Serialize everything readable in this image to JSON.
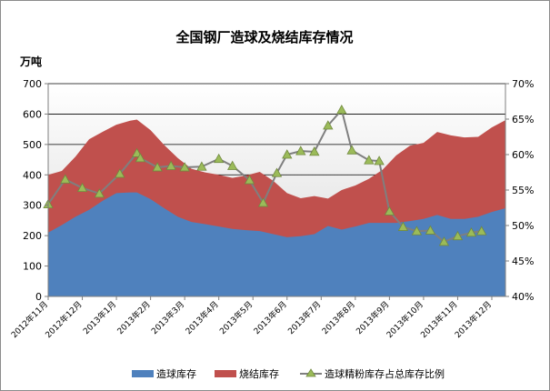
{
  "chart_data": {
    "type": "area",
    "title": "全国钢厂造球及烧结库存情况",
    "y_unit_label": "万吨",
    "ylim": [
      0,
      700
    ],
    "yticks": [
      "0",
      "100",
      "200",
      "300",
      "400",
      "500",
      "600",
      "700"
    ],
    "y2lim": [
      40,
      70
    ],
    "y2ticks": [
      "40%",
      "45%",
      "50%",
      "55%",
      "60%",
      "65%",
      "70%"
    ],
    "xticks": [
      "2012年11月",
      "2012年12月",
      "2013年1月",
      "2013年2月",
      "2013年3月",
      "2013年4月",
      "2013年5月",
      "2013年6月",
      "2013年7月",
      "2013年8月",
      "2013年9月",
      "2013年10月",
      "2013年11月",
      "2013年12月"
    ],
    "x_months": [
      0,
      0.4,
      0.8,
      1.2,
      1.6,
      2.0,
      2.4,
      2.6,
      3.0,
      3.4,
      3.8,
      4.2,
      4.6,
      5.0,
      5.4,
      5.8,
      6.2,
      6.6,
      7.0,
      7.4,
      7.8,
      8.2,
      8.6,
      9.0,
      9.4,
      9.8,
      10.2,
      10.6,
      11.0,
      11.4,
      11.8,
      12.2,
      12.6,
      13.0,
      13.4
    ],
    "series": [
      {
        "name": "造球库存",
        "role": "stacked-area",
        "color": "#4f81bd",
        "values": [
          210,
          235,
          262,
          285,
          315,
          340,
          342,
          342,
          320,
          290,
          262,
          245,
          238,
          230,
          222,
          218,
          215,
          205,
          195,
          198,
          205,
          232,
          220,
          230,
          242,
          242,
          242,
          248,
          255,
          268,
          255,
          255,
          262,
          278,
          290
        ]
      },
      {
        "name": "烧结库存",
        "role": "stacked-area",
        "color": "#c0504d",
        "values": [
          190,
          178,
          198,
          232,
          227,
          225,
          236,
          240,
          227,
          208,
          193,
          175,
          170,
          170,
          168,
          180,
          195,
          175,
          145,
          125,
          125,
          90,
          130,
          135,
          145,
          175,
          222,
          248,
          250,
          273,
          275,
          268,
          263,
          278,
          290
        ]
      },
      {
        "name": "造球精粉库存占总库存比例",
        "role": "line",
        "axis": "right",
        "color": "#7f7f7f",
        "marker_color": "#9bbb59",
        "x": [
          0,
          0.5,
          1.0,
          1.5,
          2.1,
          2.6,
          2.7,
          3.2,
          3.6,
          4.0,
          4.5,
          5.0,
          5.4,
          5.9,
          6.3,
          6.7,
          7.0,
          7.4,
          7.8,
          8.2,
          8.6,
          8.9,
          9.4,
          9.7,
          10.0,
          10.4,
          10.8,
          11.2,
          11.6,
          12.0,
          12.4,
          12.7
        ],
        "values": [
          53,
          56.5,
          55.3,
          54.5,
          57.3,
          60.2,
          59.5,
          58.2,
          58.4,
          58.2,
          58.3,
          59.4,
          58.4,
          56.4,
          53.2,
          57.4,
          60.0,
          60.5,
          60.4,
          64.1,
          66.3,
          60.6,
          59.2,
          59.1,
          52.0,
          49.8,
          49.2,
          49.3,
          47.7,
          48.5,
          49.0,
          49.2
        ]
      }
    ],
    "grid": true,
    "legend_position": "bottom",
    "background_shading": true
  },
  "legend": {
    "item1_label": "造球库存",
    "item2_label": "烧结库存",
    "item3_label": "造球精粉库存占总库存比例"
  }
}
